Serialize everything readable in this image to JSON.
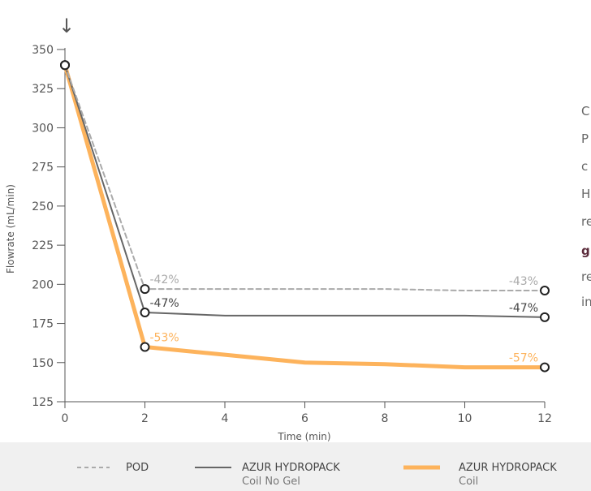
{
  "chart_data": {
    "type": "line",
    "x": [
      0,
      2,
      4,
      6,
      8,
      10,
      12
    ],
    "xlabel": "Time (min)",
    "ylabel": "Flowrate (mL/min)",
    "xlim": [
      0,
      12
    ],
    "ylim": [
      125,
      350
    ],
    "xticks": [
      0,
      2,
      4,
      6,
      8,
      10,
      12
    ],
    "yticks": [
      125,
      150,
      175,
      200,
      225,
      250,
      275,
      300,
      325,
      350
    ],
    "grid": false,
    "legend_position": "bottom",
    "series": [
      {
        "name": "POD",
        "color": "#aaaaaa",
        "style": "dashed",
        "values": [
          340,
          197,
          197,
          197,
          197,
          196,
          196
        ],
        "markers": [
          [
            0,
            340
          ],
          [
            2,
            197
          ],
          [
            12,
            196
          ]
        ],
        "labels": [
          {
            "x": 2,
            "y": 197,
            "text": "-42%"
          },
          {
            "x": 12,
            "y": 196,
            "text": "-43%"
          }
        ]
      },
      {
        "name": "AZUR HYDROPACK Coil No Gel",
        "legend_lines": [
          "AZUR HYDROPACK",
          "Coil No Gel"
        ],
        "color": "#666666",
        "style": "solid",
        "values": [
          340,
          182,
          180,
          180,
          180,
          180,
          179
        ],
        "markers": [
          [
            0,
            340
          ],
          [
            2,
            182
          ],
          [
            12,
            179
          ]
        ],
        "labels": [
          {
            "x": 2,
            "y": 182,
            "text": "-47%"
          },
          {
            "x": 12,
            "y": 179,
            "text": "-47%"
          }
        ]
      },
      {
        "name": "AZUR HYDROPACK Coil",
        "legend_lines": [
          "AZUR HYDROPACK",
          "Coil"
        ],
        "color": "#fdb35c",
        "style": "thick",
        "values": [
          340,
          160,
          155,
          150,
          149,
          147,
          147
        ],
        "markers": [
          [
            0,
            340
          ],
          [
            2,
            160
          ],
          [
            12,
            147
          ]
        ],
        "labels": [
          {
            "x": 2,
            "y": 160,
            "text": "-53%"
          },
          {
            "x": 12,
            "y": 147,
            "text": "-57%"
          }
        ]
      }
    ]
  },
  "side_text": [
    "C",
    "P",
    "c",
    "H",
    "re",
    "g",
    "re",
    "in"
  ],
  "top_arrow": "↓"
}
